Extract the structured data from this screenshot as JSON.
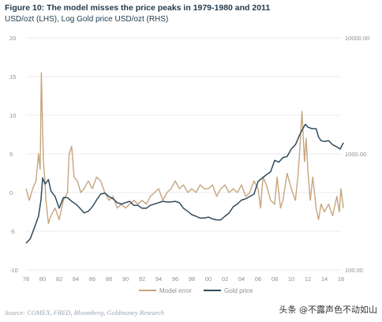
{
  "header": {
    "title": "Figure 10: The model misses the price peaks in 1979-1980 and 2011",
    "subtitle": "USD/ozt (LHS), Log Gold price USD/ozt (RHS)"
  },
  "footer": {
    "source": "Source: COMEX, FRED, Bloomberg, Goldmoney Research",
    "watermark": "头条 @不露声色不动如山"
  },
  "colors": {
    "model_error": "#c6a57e",
    "gold_price": "#2f4b5c",
    "axis_text": "#8f8f8f",
    "grid": "#e4e4e4"
  },
  "chart_data": {
    "type": "line",
    "title": "Figure 10: The model misses the price peaks in 1979-1980 and 2011",
    "subtitle": "USD/ozt (LHS), Log Gold price USD/ozt (RHS)",
    "x_ticks": [
      "78",
      "80",
      "82",
      "84",
      "86",
      "88",
      "90",
      "92",
      "94",
      "96",
      "98",
      "00",
      "02",
      "04",
      "06",
      "08",
      "10",
      "12",
      "14",
      "16"
    ],
    "x_range": [
      1978,
      2016
    ],
    "y_left": {
      "ticks": [
        "-10",
        "-5",
        "0",
        "5",
        "10",
        "15",
        "20"
      ],
      "range": [
        -10,
        20
      ]
    },
    "y_right": {
      "scale": "log",
      "ticks": [
        "100.00",
        "1000.00",
        "10000.00"
      ],
      "range": [
        100,
        10000
      ]
    },
    "grid": true,
    "legend": {
      "placement": "bottom-center",
      "entries": [
        "Model error",
        "Gold price"
      ]
    },
    "series": [
      {
        "name": "Model error",
        "axis": "left",
        "x": [
          1978.0,
          1978.4,
          1978.8,
          1979.2,
          1979.5,
          1979.7,
          1979.85,
          1980.0,
          1980.1,
          1980.25,
          1980.4,
          1980.7,
          1981.0,
          1981.5,
          1982.0,
          1982.5,
          1983.0,
          1983.2,
          1983.5,
          1983.8,
          1984.2,
          1984.6,
          1985.0,
          1985.5,
          1986.0,
          1986.5,
          1987.0,
          1987.5,
          1988.0,
          1988.5,
          1989.0,
          1989.5,
          1990.0,
          1990.5,
          1991.0,
          1991.5,
          1992.0,
          1992.5,
          1993.0,
          1993.5,
          1994.0,
          1994.5,
          1995.0,
          1995.5,
          1996.0,
          1996.5,
          1997.0,
          1997.5,
          1998.0,
          1998.5,
          1999.0,
          1999.5,
          2000.0,
          2000.5,
          2001.0,
          2001.5,
          2002.0,
          2002.5,
          2003.0,
          2003.5,
          2004.0,
          2004.5,
          2005.0,
          2005.5,
          2006.0,
          2006.3,
          2006.6,
          2007.0,
          2007.5,
          2008.0,
          2008.3,
          2008.7,
          2009.0,
          2009.5,
          2010.0,
          2010.5,
          2010.8,
          2011.0,
          2011.3,
          2011.6,
          2011.8,
          2012.0,
          2012.3,
          2012.6,
          2013.0,
          2013.3,
          2013.6,
          2014.0,
          2014.5,
          2015.0,
          2015.5,
          2015.8,
          2016.0,
          2016.3
        ],
        "y": [
          0.5,
          -1.0,
          0.5,
          1.5,
          5.0,
          3.0,
          15.5,
          8.0,
          4.0,
          2.0,
          -1.0,
          -4.0,
          -3.0,
          -2.0,
          -3.5,
          -1.0,
          0.0,
          5.0,
          6.0,
          2.0,
          1.5,
          0.0,
          0.5,
          1.5,
          0.5,
          2.0,
          1.5,
          0.0,
          -1.0,
          -0.5,
          -2.0,
          -1.5,
          -2.0,
          -1.5,
          -1.0,
          -1.5,
          -1.0,
          -1.5,
          -0.5,
          0.0,
          0.5,
          -1.0,
          0.0,
          0.5,
          1.5,
          0.5,
          1.0,
          0.0,
          0.5,
          0.0,
          1.0,
          0.5,
          0.5,
          1.0,
          -0.5,
          0.5,
          1.0,
          0.0,
          0.5,
          0.0,
          1.0,
          -0.5,
          0.0,
          1.5,
          0.5,
          -2.0,
          2.0,
          1.0,
          -1.0,
          -1.5,
          2.0,
          -2.0,
          -1.0,
          2.5,
          0.5,
          -1.0,
          2.0,
          5.0,
          10.5,
          4.0,
          7.0,
          3.0,
          -1.0,
          2.0,
          -2.0,
          -3.5,
          -1.5,
          -2.5,
          -1.5,
          -3.0,
          -0.5,
          -2.5,
          0.5,
          -2.0
        ]
      },
      {
        "name": "Gold price",
        "axis": "right",
        "x": [
          1978.0,
          1978.5,
          1979.0,
          1979.5,
          1979.8,
          1980.0,
          1980.3,
          1980.7,
          1981.0,
          1981.5,
          1982.0,
          1982.5,
          1983.0,
          1983.5,
          1984.0,
          1984.5,
          1985.0,
          1985.5,
          1986.0,
          1986.5,
          1987.0,
          1987.5,
          1988.0,
          1988.5,
          1989.0,
          1989.5,
          1990.0,
          1990.5,
          1991.0,
          1991.5,
          1992.0,
          1992.5,
          1993.0,
          1993.5,
          1994.0,
          1994.5,
          1995.0,
          1995.5,
          1996.0,
          1996.5,
          1997.0,
          1997.5,
          1998.0,
          1998.5,
          1999.0,
          1999.5,
          2000.0,
          2000.5,
          2001.0,
          2001.5,
          2002.0,
          2002.5,
          2003.0,
          2003.5,
          2004.0,
          2004.5,
          2005.0,
          2005.5,
          2006.0,
          2006.5,
          2007.0,
          2007.5,
          2008.0,
          2008.5,
          2009.0,
          2009.5,
          2010.0,
          2010.5,
          2011.0,
          2011.3,
          2011.7,
          2012.0,
          2012.5,
          2013.0,
          2013.3,
          2013.6,
          2014.0,
          2014.5,
          2015.0,
          2015.5,
          2015.9,
          2016.3
        ],
        "y": [
          170,
          185,
          230,
          290,
          400,
          620,
          550,
          600,
          480,
          430,
          340,
          420,
          420,
          390,
          370,
          340,
          310,
          320,
          350,
          400,
          450,
          460,
          430,
          410,
          380,
          370,
          380,
          390,
          360,
          360,
          340,
          340,
          360,
          370,
          380,
          390,
          385,
          385,
          390,
          380,
          340,
          320,
          300,
          290,
          280,
          280,
          285,
          275,
          270,
          270,
          290,
          310,
          350,
          370,
          400,
          410,
          430,
          450,
          580,
          620,
          660,
          700,
          880,
          850,
          930,
          950,
          1100,
          1200,
          1450,
          1600,
          1800,
          1700,
          1650,
          1650,
          1400,
          1300,
          1280,
          1300,
          1200,
          1150,
          1100,
          1250
        ]
      }
    ]
  }
}
